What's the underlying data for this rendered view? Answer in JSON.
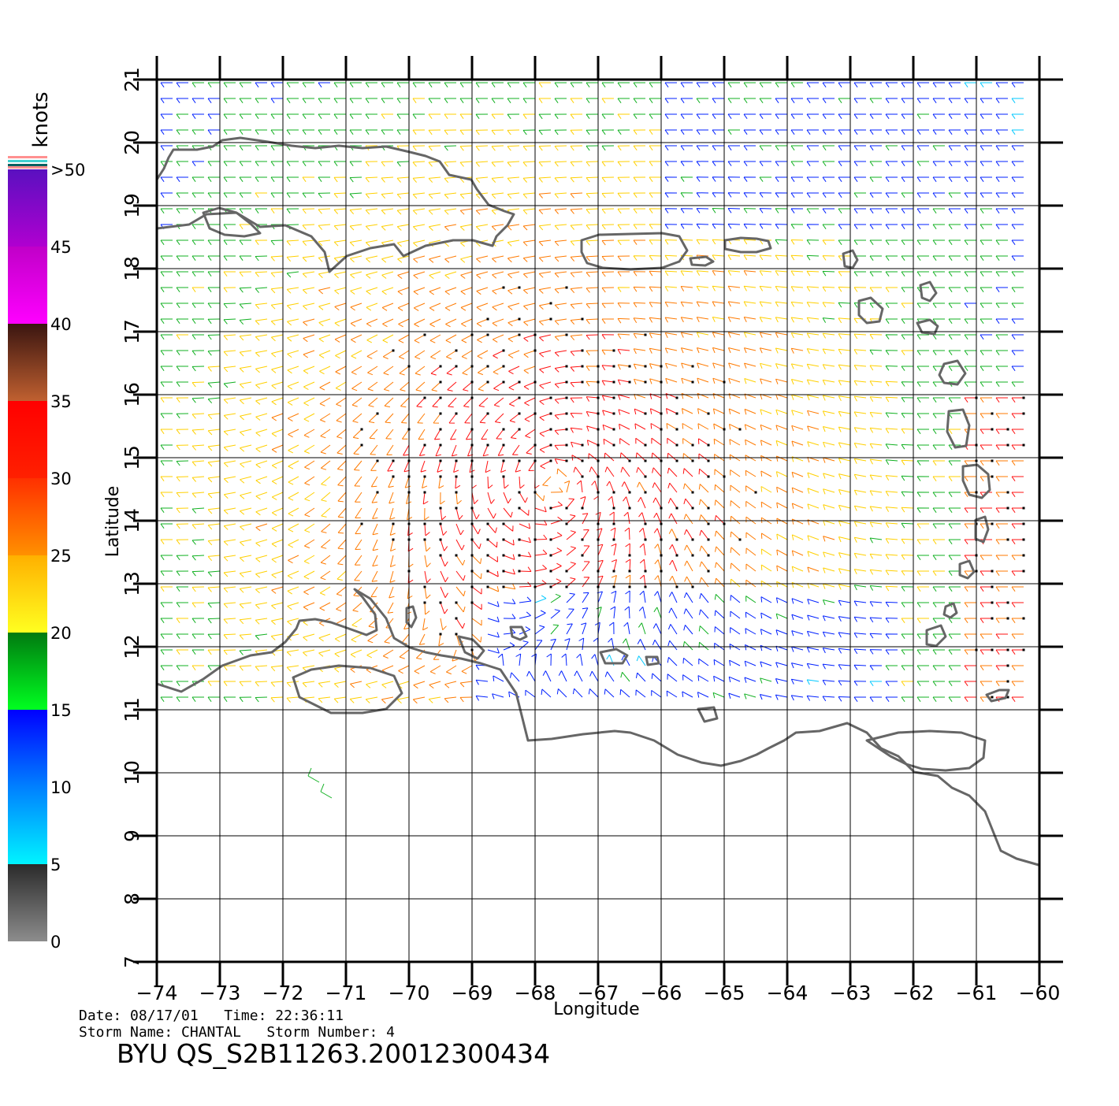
{
  "chart_data": {
    "type": "wind-barb-map",
    "xlabel": "Longitude",
    "ylabel": "Latitude",
    "xlim": [
      -74,
      -60
    ],
    "ylim": [
      7,
      21
    ],
    "x_ticks": [
      -74,
      -73,
      -72,
      -71,
      -70,
      -69,
      -68,
      -67,
      -66,
      -65,
      -64,
      -63,
      -62,
      -61,
      -60
    ],
    "y_ticks": [
      7,
      8,
      9,
      10,
      11,
      12,
      13,
      14,
      15,
      16,
      17,
      18,
      19,
      20,
      21
    ],
    "x_tick_labels": [
      "−74",
      "−73",
      "−72",
      "−71",
      "−70",
      "−69",
      "−68",
      "−67",
      "−66",
      "−65",
      "−64",
      "−63",
      "−62",
      "−61",
      "−60"
    ],
    "y_tick_labels": [
      "7",
      "8",
      "9",
      "10",
      "11",
      "12",
      "13",
      "14",
      "15",
      "16",
      "17",
      "18",
      "19",
      "20",
      "21"
    ],
    "grid": true,
    "colorbar": {
      "title": "knots",
      "placement": "left",
      "bands": [
        {
          "from": 0,
          "to": 5,
          "colors": [
            "#8c8c8c",
            "#2a2a2a"
          ]
        },
        {
          "from": 5,
          "to": 10,
          "colors": [
            "#00f4ff",
            "#0080ff"
          ]
        },
        {
          "from": 10,
          "to": 15,
          "colors": [
            "#0080ff",
            "#0000ff"
          ]
        },
        {
          "from": 15,
          "to": 20,
          "colors": [
            "#00ff20",
            "#007a10"
          ]
        },
        {
          "from": 20,
          "to": 25,
          "colors": [
            "#ffff20",
            "#ffb000"
          ]
        },
        {
          "from": 25,
          "to": 30,
          "colors": [
            "#ff9000",
            "#ff3000"
          ]
        },
        {
          "from": 30,
          "to": 35,
          "colors": [
            "#ff2000",
            "#ff0000"
          ]
        },
        {
          "from": 35,
          "to": 40,
          "colors": [
            "#c06030",
            "#3a1510"
          ]
        },
        {
          "from": 40,
          "to": 45,
          "colors": [
            "#ff00ff",
            "#c000c8"
          ]
        },
        {
          "from": 45,
          "to": 50,
          "colors": [
            "#b000d0",
            "#5a10c0"
          ]
        }
      ],
      "tick_labels": [
        "0",
        "5",
        "10",
        "15",
        "20",
        "25",
        "30",
        "35",
        "40",
        "45",
        ">50"
      ]
    },
    "circulation_center": {
      "lon": -67.7,
      "lat": 14.6
    }
  },
  "info": {
    "date_line": "Date: 08/17/01   Time: 22:36:11",
    "storm_line": "Storm Name: CHANTAL   Storm Number: 4",
    "file_id": "BYU QS_S2B11263.20012300434"
  },
  "colors": {
    "coastline": "#666666",
    "grid": "#000000"
  }
}
